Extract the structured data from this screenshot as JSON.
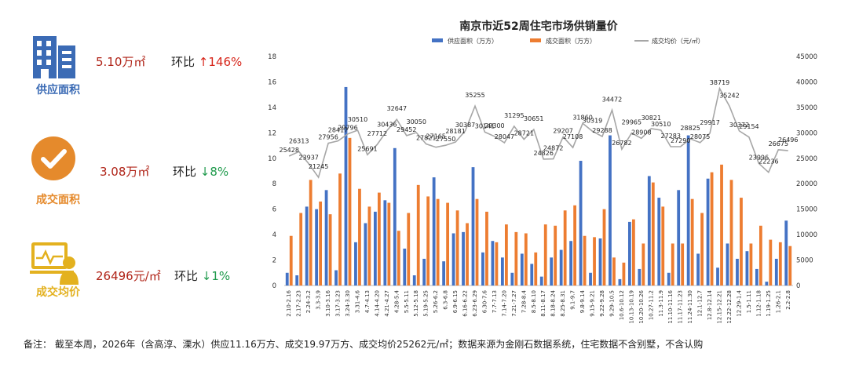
{
  "kpis": [
    {
      "label": "供应面积",
      "value": "5.10万㎡",
      "ratio_label": "环比",
      "ratio_arrow": "↑",
      "ratio_value": "146%",
      "direction": "up",
      "icon": "building-icon",
      "color": "#3b6bb5"
    },
    {
      "label": "成交面积",
      "value": "3.08万㎡",
      "ratio_label": "环比",
      "ratio_arrow": "↓",
      "ratio_value": "8%",
      "direction": "down",
      "icon": "checkmark-icon",
      "color": "#e58a2c"
    },
    {
      "label": "成交均价",
      "value": "26496元/㎡",
      "ratio_label": "环比",
      "ratio_arrow": "↓",
      "ratio_value": "1%",
      "direction": "down",
      "icon": "presenter-screen-icon",
      "color": "#e3b11f"
    }
  ],
  "note": "备注：  截至本周，2026年（含高淳、溧水）供应11.16万方、成交19.97万方、成交均价25262元/㎡；数据来源为金刚石数据系统，住宅数据不含别墅，不含认购",
  "chart_data": {
    "type": "bar",
    "title": "南京市近52周住宅市场供销量价",
    "legend_position": "top",
    "y_left": {
      "min": 0,
      "max": 18,
      "ticks": [
        0,
        2,
        4,
        6,
        8,
        10,
        12,
        14,
        16,
        18
      ]
    },
    "y_right": {
      "min": 0,
      "max": 45000,
      "ticks": [
        0,
        5000,
        10000,
        15000,
        20000,
        25000,
        30000,
        35000,
        40000,
        45000
      ]
    },
    "grid": false,
    "categories": [
      "2.10-2.16",
      "2.17-2.23",
      "2.24-3.2",
      "3.3-3.9",
      "3.10-3.16",
      "3.17-3.23",
      "3.24-3.30",
      "3.31-4.6",
      "4.7-4.13",
      "4.14-4.20",
      "4.21-4.27",
      "4.28-5.4",
      "5.5-5.11",
      "5.12-5.18",
      "5.19-5.25",
      "5.26-6.2",
      "6.3-6.8",
      "6.9-6.15",
      "6.16-6.22",
      "6.23-6.29",
      "6.30-7.6",
      "7.7-7.13",
      "7.14-7.20",
      "7.21-7.27",
      "7.28-8.4",
      "8.5-8.10",
      "8.11-8.17",
      "8.18-8.24",
      "8.25-8.31",
      "9.1-9.7",
      "9.8-9.14",
      "9.15-9.21",
      "9.22-9.28",
      "9.29-10.5",
      "10.6-10.12",
      "10.13-10.19",
      "10.20-10.26",
      "10.27-11.2",
      "11.3-11.9",
      "11.10-11.16",
      "11.17-11.23",
      "11.24-11.30",
      "12.1-12.7",
      "12.8-12.14",
      "12.15-12.21",
      "12.22-12.28",
      "12.29-1.4",
      "1.5-1.11",
      "1.12-1.18",
      "1.19-1.25",
      "1.26-2.1",
      "2.2-2.8"
    ],
    "series": [
      {
        "name": "供应面积（万方）",
        "axis": "left",
        "type": "bar",
        "color": "#4472c4",
        "values": [
          1.0,
          0.8,
          6.2,
          6.0,
          7.5,
          1.2,
          15.6,
          3.4,
          4.9,
          5.8,
          6.7,
          10.8,
          2.9,
          0.8,
          2.1,
          8.5,
          1.9,
          4.1,
          4.2,
          9.3,
          2.6,
          3.5,
          2.2,
          1.0,
          2.5,
          1.7,
          0.7,
          2.2,
          2.8,
          3.5,
          9.8,
          1.0,
          3.7,
          11.8,
          0.5,
          5.0,
          1.3,
          8.6,
          6.9,
          1.0,
          7.5,
          11.8,
          2.5,
          8.4,
          1.4,
          3.3,
          2.1,
          2.7,
          1.3,
          0.3,
          2.1,
          5.1
        ]
      },
      {
        "name": "成交面积（万方）",
        "axis": "left",
        "type": "bar",
        "color": "#ed7d31",
        "values": [
          3.9,
          5.7,
          8.3,
          6.6,
          5.6,
          8.8,
          11.6,
          7.6,
          6.2,
          7.3,
          6.5,
          4.3,
          5.7,
          7.9,
          7.0,
          6.8,
          6.5,
          5.9,
          4.9,
          6.8,
          5.8,
          3.4,
          4.8,
          4.2,
          4.1,
          2.6,
          4.8,
          4.7,
          5.9,
          6.3,
          3.9,
          3.8,
          6.0,
          2.2,
          1.8,
          5.2,
          3.3,
          8.1,
          6.2,
          3.3,
          3.3,
          6.8,
          5.7,
          8.9,
          9.5,
          8.3,
          6.9,
          3.3,
          4.7,
          3.6,
          3.4,
          3.1
        ]
      },
      {
        "name": "成交均价（元/㎡）",
        "axis": "right",
        "type": "line",
        "color": "#a6a6a6",
        "values": [
          25428,
          26313,
          23937,
          21245,
          27956,
          28417,
          29796,
          30510,
          25691,
          27712,
          30436,
          32647,
          29452,
          30050,
          27821,
          27165,
          27550,
          28181,
          30387,
          35255,
          30141,
          29300,
          28047,
          31295,
          28721,
          30651,
          24826,
          24872,
          29207,
          27108,
          31860,
          30319,
          29288,
          34472,
          26782,
          29965,
          28908,
          30821,
          30510,
          27283,
          27290,
          28825,
          28075,
          29917,
          38719,
          35242,
          30372,
          29154,
          23996,
          22236,
          26675,
          26496
        ]
      }
    ]
  }
}
